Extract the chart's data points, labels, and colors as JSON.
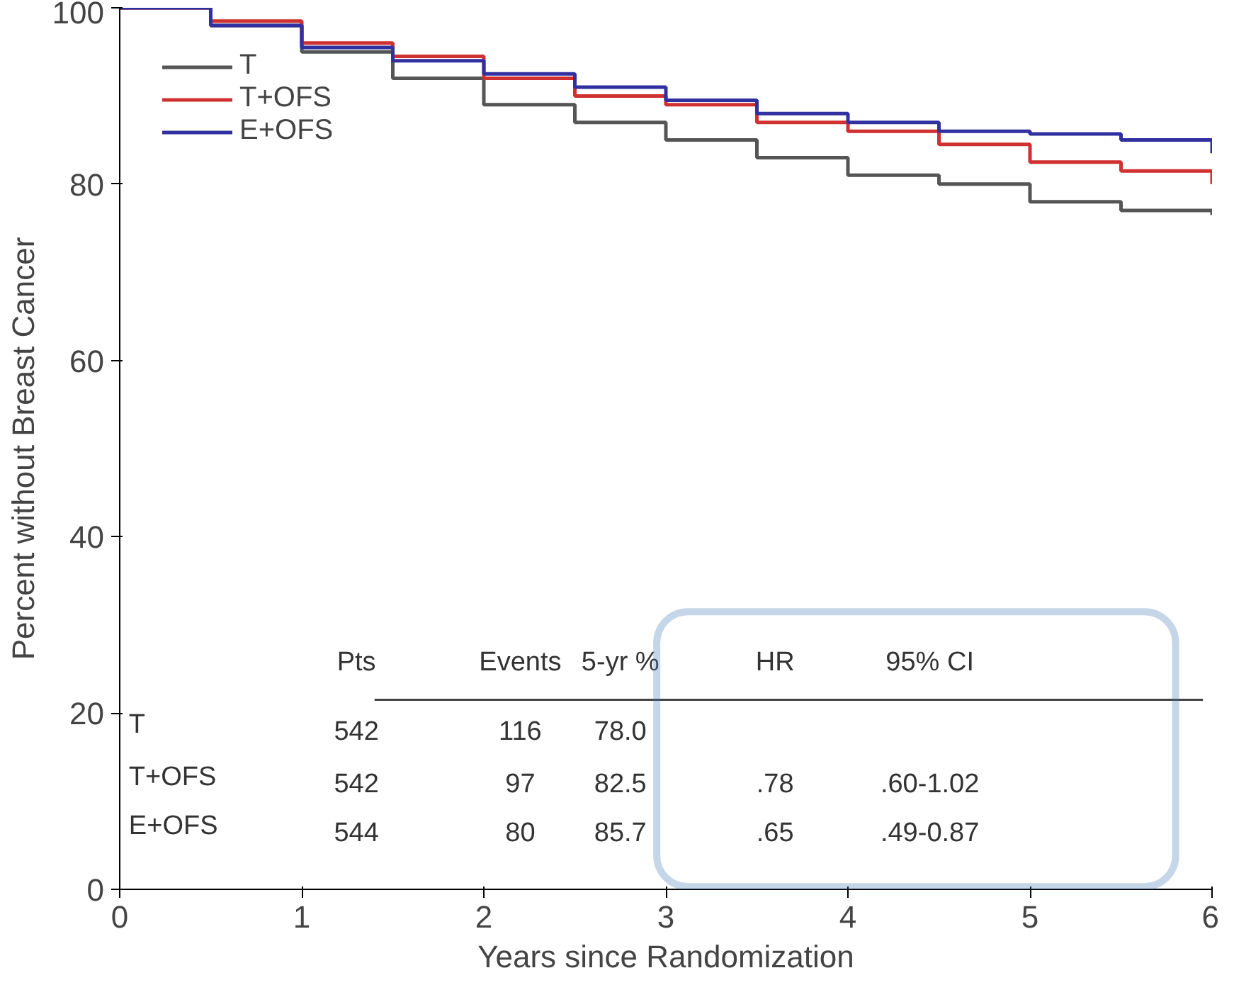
{
  "chart_data": {
    "type": "step",
    "xlabel": "Years since Randomization",
    "ylabel": "Percent without Breast Cancer",
    "x": [
      0,
      0.5,
      1,
      1.5,
      2,
      2.5,
      3,
      3.5,
      4,
      4.5,
      5,
      5.5,
      6
    ],
    "series": [
      {
        "name": "T",
        "color": "#555555",
        "values": [
          100,
          98,
          95,
          92,
          89,
          87,
          85,
          83,
          81,
          80,
          78,
          77,
          76.5
        ]
      },
      {
        "name": "T+OFS",
        "color": "#d03030",
        "values": [
          100,
          98.5,
          96,
          94.5,
          92,
          90,
          89,
          87,
          86,
          84.5,
          82.5,
          81.5,
          80
        ]
      },
      {
        "name": "E+OFS",
        "color": "#3030a0",
        "values": [
          100,
          98,
          95.5,
          94,
          92.5,
          91,
          89.5,
          88,
          87,
          86,
          85.7,
          85,
          83.5
        ]
      }
    ],
    "xlim": [
      0,
      6
    ],
    "xticks": [
      0,
      1,
      2,
      3,
      4,
      5,
      6
    ],
    "ylim": [
      0,
      100
    ],
    "yticks": [
      0,
      20,
      40,
      60,
      80,
      100
    ],
    "grid": false,
    "legend": "top left",
    "annotations": [
      "Pts",
      "Events",
      "5-yr %",
      "HR",
      "95% CI",
      "T",
      "542",
      "116",
      "78.0",
      "T+OFS",
      "542",
      "97",
      "82.5",
      ".78",
      ".60-1.02",
      "E+OFS",
      "544",
      "80",
      "85.7",
      ".65",
      ".49-0.87"
    ]
  }
}
